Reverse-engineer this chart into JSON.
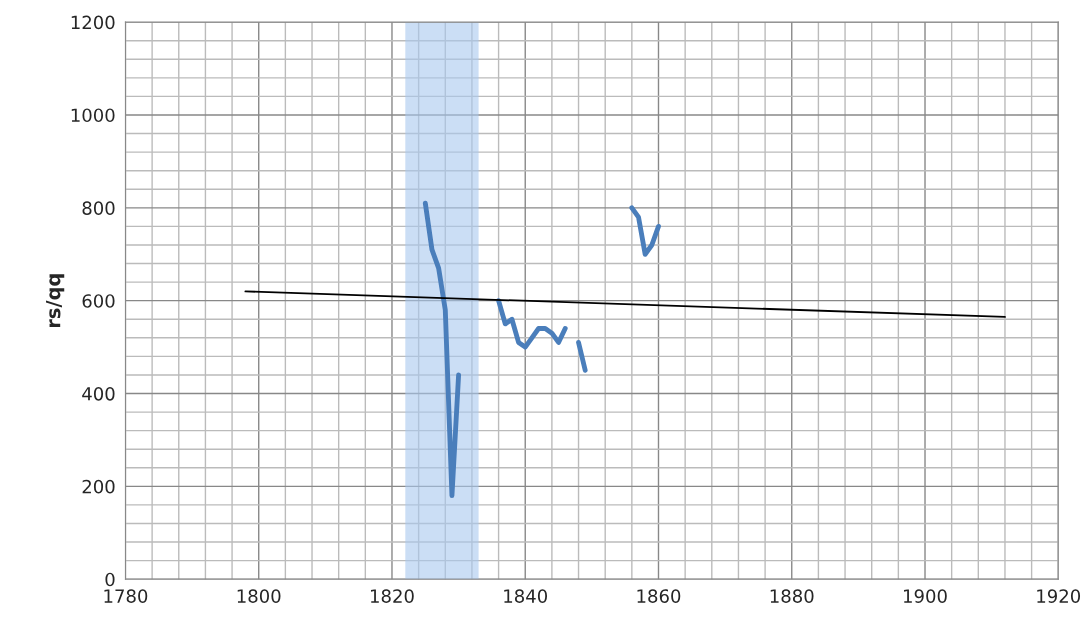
{
  "chart_data": {
    "type": "line",
    "ylabel": "rs/qq",
    "x": [
      1825,
      1826,
      1827,
      1828,
      1829,
      1830,
      1831,
      1832,
      1833,
      1834,
      1835,
      1836,
      1837,
      1838,
      1839,
      1840,
      1841,
      1842,
      1843,
      1844,
      1845,
      1846,
      1847,
      1848,
      1849,
      1850,
      1851,
      1852,
      1853,
      1854,
      1855,
      1856,
      1857,
      1858,
      1859,
      1860
    ],
    "series": [
      {
        "color": "#4a7ebb",
        "values": [
          810,
          710,
          670,
          580,
          180,
          440,
          null,
          null,
          null,
          null,
          null,
          600,
          550,
          560,
          510,
          500,
          520,
          540,
          540,
          530,
          510,
          540,
          null,
          510,
          450,
          null,
          null,
          null,
          null,
          null,
          null,
          800,
          780,
          700,
          720,
          760
        ]
      },
      {
        "type": "line",
        "color": "#000000",
        "x": [
          1798,
          1912
        ],
        "values": [
          620,
          565
        ]
      }
    ],
    "bands": [
      {
        "axis": "x",
        "from": 1822,
        "to": 1833,
        "color": "#a9c8ef"
      }
    ],
    "xlim": [
      1780,
      1920
    ],
    "xticks": [
      1780,
      1800,
      1820,
      1840,
      1860,
      1880,
      1900,
      1920
    ],
    "ylim": [
      0,
      1200
    ],
    "yticks": [
      0,
      200,
      400,
      600,
      800,
      1000,
      1200
    ],
    "grid": true,
    "legend": false,
    "marker": "none",
    "line_style": "solid"
  }
}
